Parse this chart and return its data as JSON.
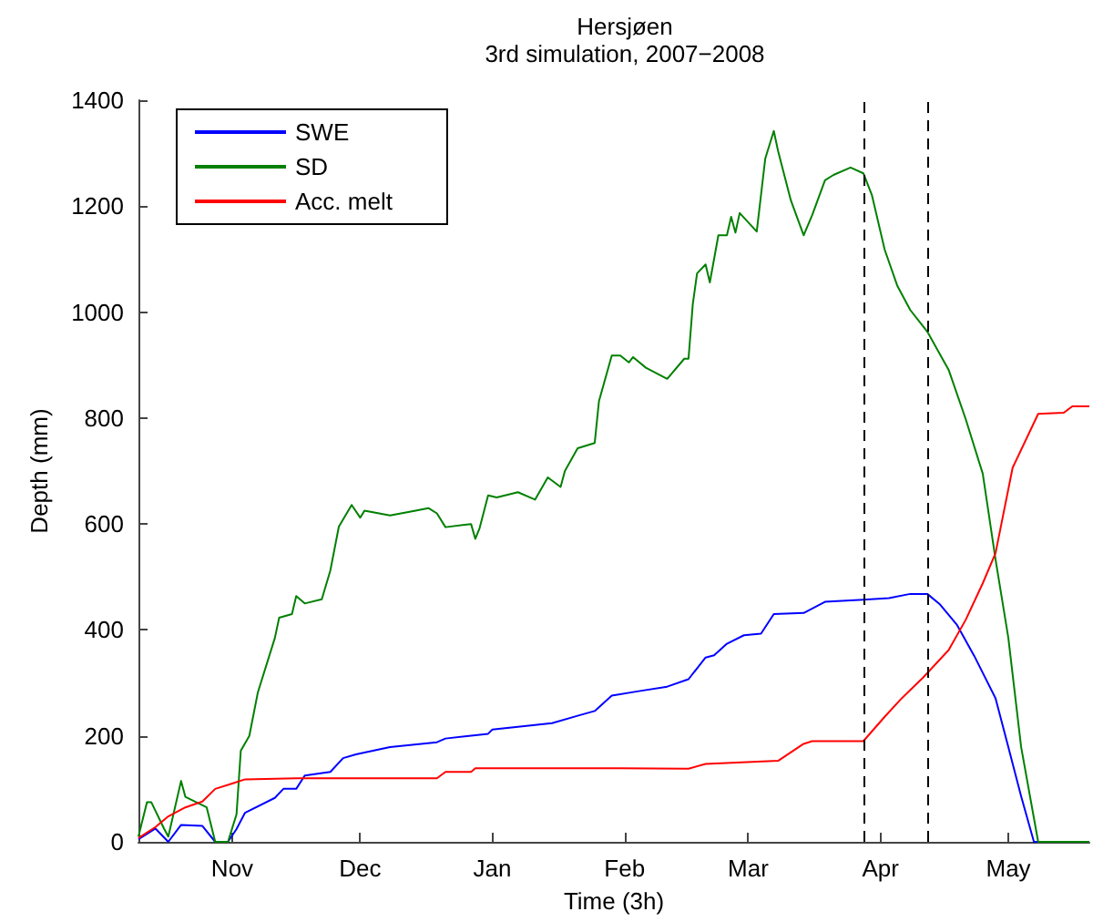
{
  "chart_data": {
    "type": "line",
    "title": "Hersjøen",
    "subtitle": "3rd simulation, 2007−2008",
    "xlabel": "Time (3h)",
    "ylabel": "Depth (mm)",
    "xlim": [
      "2007-10-10",
      "2008-05-20"
    ],
    "xticks": [
      {
        "value": "2007-11-01",
        "label": "Nov"
      },
      {
        "value": "2007-12-01",
        "label": "Dec"
      },
      {
        "value": "2008-01-01",
        "label": "Jan"
      },
      {
        "value": "2008-02-01",
        "label": "Feb"
      },
      {
        "value": "2008-03-01",
        "label": "Mar"
      },
      {
        "value": "2008-04-01",
        "label": "Apr"
      },
      {
        "value": "2008-05-01",
        "label": "May"
      }
    ],
    "ylim": [
      0,
      1400
    ],
    "yticks": [
      0,
      200,
      400,
      600,
      800,
      1000,
      1200,
      1400
    ],
    "grid": false,
    "legend": "top left",
    "marker": "none",
    "line_style": "solid",
    "ref_lines": [
      {
        "axis": "x",
        "value": "2008-03-28",
        "label": null,
        "color": "#000000",
        "line_style": "dashed"
      },
      {
        "axis": "x",
        "value": "2008-04-12",
        "label": null,
        "color": "#000000",
        "line_style": "dashed"
      }
    ],
    "series": [
      {
        "name": "SWE",
        "color": "#0000ff",
        "x": [
          "2007-10-10",
          "2007-10-14",
          "2007-10-17",
          "2007-10-20",
          "2007-10-25",
          "2007-10-28",
          "2007-10-31",
          "2007-11-02",
          "2007-11-04",
          "2007-11-11",
          "2007-11-13",
          "2007-11-16",
          "2007-11-18",
          "2007-11-24",
          "2007-11-27",
          "2007-11-30",
          "2007-12-08",
          "2007-12-19",
          "2007-12-21",
          "2007-12-31",
          "2008-01-01",
          "2008-01-15",
          "2008-01-21",
          "2008-01-25",
          "2008-01-29",
          "2008-02-04",
          "2008-02-11",
          "2008-02-16",
          "2008-02-20",
          "2008-02-22",
          "2008-02-25",
          "2008-02-29",
          "2008-03-04",
          "2008-03-07",
          "2008-03-14",
          "2008-03-19",
          "2008-03-28",
          "2008-04-03",
          "2008-04-08",
          "2008-04-12",
          "2008-04-15",
          "2008-04-19",
          "2008-04-23",
          "2008-04-28",
          "2008-05-01",
          "2008-05-04",
          "2008-05-07",
          "2008-05-20"
        ],
        "values": [
          5,
          25,
          0,
          32,
          30,
          0,
          0,
          24,
          55,
          83,
          100,
          100,
          125,
          132,
          158,
          165,
          179,
          188,
          195,
          204,
          212,
          224,
          238,
          247,
          276,
          284,
          293,
          307,
          348,
          352,
          374,
          390,
          393,
          430,
          432,
          453,
          457,
          460,
          468,
          468,
          448,
          409,
          351,
          271,
          179,
          86,
          0,
          0
        ]
      },
      {
        "name": "SD",
        "color": "#008000",
        "x": [
          "2007-10-10",
          "2007-10-12",
          "2007-10-13",
          "2007-10-16",
          "2007-10-17",
          "2007-10-20",
          "2007-10-21",
          "2007-10-26",
          "2007-10-28",
          "2007-10-31",
          "2007-11-02",
          "2007-11-03",
          "2007-11-05",
          "2007-11-07",
          "2007-11-11",
          "2007-11-12",
          "2007-11-15",
          "2007-11-16",
          "2007-11-18",
          "2007-11-22",
          "2007-11-24",
          "2007-11-26",
          "2007-11-29",
          "2007-12-01",
          "2007-12-02",
          "2007-12-08",
          "2007-12-14",
          "2007-12-17",
          "2007-12-19",
          "2007-12-21",
          "2007-12-27",
          "2007-12-28",
          "2007-12-29",
          "2007-12-31",
          "2008-01-02",
          "2008-01-07",
          "2008-01-11",
          "2008-01-14",
          "2008-01-17",
          "2008-01-18",
          "2008-01-21",
          "2008-01-25",
          "2008-01-26",
          "2008-01-29",
          "2008-01-31",
          "2008-02-02",
          "2008-02-03",
          "2008-02-06",
          "2008-02-11",
          "2008-02-15",
          "2008-02-16",
          "2008-02-17",
          "2008-02-18",
          "2008-02-20",
          "2008-02-21",
          "2008-02-23",
          "2008-02-25",
          "2008-02-26",
          "2008-02-27",
          "2008-02-28",
          "2008-03-03",
          "2008-03-05",
          "2008-03-07",
          "2008-03-08",
          "2008-03-11",
          "2008-03-14",
          "2008-03-16",
          "2008-03-19",
          "2008-03-21",
          "2008-03-25",
          "2008-03-28",
          "2008-03-30",
          "2008-04-02",
          "2008-04-05",
          "2008-04-08",
          "2008-04-12",
          "2008-04-17",
          "2008-04-21",
          "2008-04-25",
          "2008-04-28",
          "2008-05-01",
          "2008-05-04",
          "2008-05-08",
          "2008-05-20"
        ],
        "values": [
          10,
          75,
          75,
          25,
          10,
          115,
          85,
          65,
          0,
          0,
          52,
          172,
          200,
          282,
          385,
          423,
          430,
          464,
          450,
          458,
          512,
          595,
          636,
          612,
          625,
          616,
          625,
          630,
          620,
          594,
          600,
          572,
          592,
          654,
          650,
          660,
          646,
          688,
          670,
          700,
          743,
          753,
          832,
          918,
          918,
          905,
          915,
          895,
          874,
          912,
          912,
          1015,
          1073,
          1090,
          1056,
          1145,
          1145,
          1180,
          1150,
          1187,
          1152,
          1290,
          1342,
          1304,
          1211,
          1145,
          1183,
          1249,
          1259,
          1273,
          1262,
          1221,
          1118,
          1049,
          1004,
          963,
          891,
          798,
          695,
          533,
          385,
          179,
          0,
          0
        ]
      },
      {
        "name": "Acc. melt",
        "color": "#ff0000",
        "x": [
          "2007-10-10",
          "2007-10-14",
          "2007-10-17",
          "2007-10-21",
          "2007-10-25",
          "2007-10-28",
          "2007-11-01",
          "2007-11-04",
          "2007-11-16",
          "2007-12-19",
          "2007-12-21",
          "2007-12-27",
          "2007-12-28",
          "2008-01-31",
          "2008-02-16",
          "2008-02-20",
          "2008-03-08",
          "2008-03-14",
          "2008-03-16",
          "2008-03-28",
          "2008-04-02",
          "2008-04-06",
          "2008-04-11",
          "2008-04-17",
          "2008-04-21",
          "2008-04-25",
          "2008-04-28",
          "2008-05-02",
          "2008-05-08",
          "2008-05-14",
          "2008-05-16",
          "2008-05-20"
        ],
        "values": [
          7,
          28,
          48,
          65,
          76,
          100,
          110,
          118,
          120,
          120,
          132,
          132,
          139,
          139,
          138,
          147,
          153,
          185,
          190,
          190,
          236,
          271,
          310,
          362,
          419,
          488,
          545,
          706,
          808,
          810,
          822,
          822
        ]
      }
    ]
  }
}
